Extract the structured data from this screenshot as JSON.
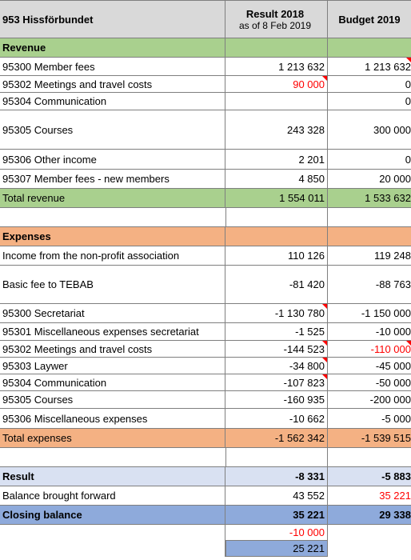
{
  "header": {
    "title": "953 Hissförbundet",
    "col1_title": "Result 2018",
    "col1_sub": "as of 8 Feb 2019",
    "col2_title": "Budget 2019"
  },
  "revenue": {
    "section_label": "Revenue",
    "rows": [
      {
        "label": "95300  Member fees",
        "result": "1 213 632",
        "budget": "1 213 632"
      },
      {
        "label": "95302  Meetings and travel costs",
        "result": "90 000",
        "budget": "0"
      },
      {
        "label": "95304  Communication",
        "result": "",
        "budget": "0"
      },
      {
        "label": "95305  Courses",
        "result": "243 328",
        "budget": "300 000"
      },
      {
        "label": "95306 Other income",
        "result": "2 201",
        "budget": "0"
      },
      {
        "label": "95307  Member fees - new members",
        "result": "4 850",
        "budget": "20 000"
      }
    ],
    "total": {
      "label": "Total revenue",
      "result": "1 554 011",
      "budget": "1 533 632"
    }
  },
  "expenses": {
    "section_label": "Expenses",
    "rows": [
      {
        "label": "Income from the non-profit association",
        "result": "110 126",
        "budget": "119 248"
      },
      {
        "label": "Basic fee to TEBAB",
        "result": "-81 420",
        "budget": "-88 763"
      },
      {
        "label": "95300  Secretariat",
        "result": "-1 130 780",
        "budget": "-1 150 000"
      },
      {
        "label": "95301  Miscellaneous expenses secretariat",
        "result": "-1 525",
        "budget": "-10 000"
      },
      {
        "label": "95302  Meetings and travel costs",
        "result": "-144 523",
        "budget": "-110 000"
      },
      {
        "label": "95303  Laywer",
        "result": "-34 800",
        "budget": "-45 000"
      },
      {
        "label": "95304  Communication",
        "result": "-107 823",
        "budget": "-50 000"
      },
      {
        "label": "95305  Courses",
        "result": "-160 935",
        "budget": "-200 000"
      },
      {
        "label": "95306  Miscellaneous expenses",
        "result": "-10 662",
        "budget": "-5 000"
      }
    ],
    "total": {
      "label": "Total expenses",
      "result": "-1 562 342",
      "budget": "-1 539 515"
    }
  },
  "summary": {
    "result": {
      "label": "Result",
      "result": "-8 331",
      "budget": "-5 883"
    },
    "balance_forward": {
      "label": "Balance brought forward",
      "result": "43 552",
      "budget": "35 221"
    },
    "closing": {
      "label": "Closing balance",
      "result": "35 221",
      "budget": "29 338"
    },
    "extra1": "-10 000",
    "extra2": "25 221"
  },
  "colors": {
    "header": "#d9d9d9",
    "revenue": "#a9d08e",
    "expenses": "#f4b183",
    "result": "#d9e1f2",
    "closing": "#8eaadb",
    "negative_note": "#ff0000"
  }
}
